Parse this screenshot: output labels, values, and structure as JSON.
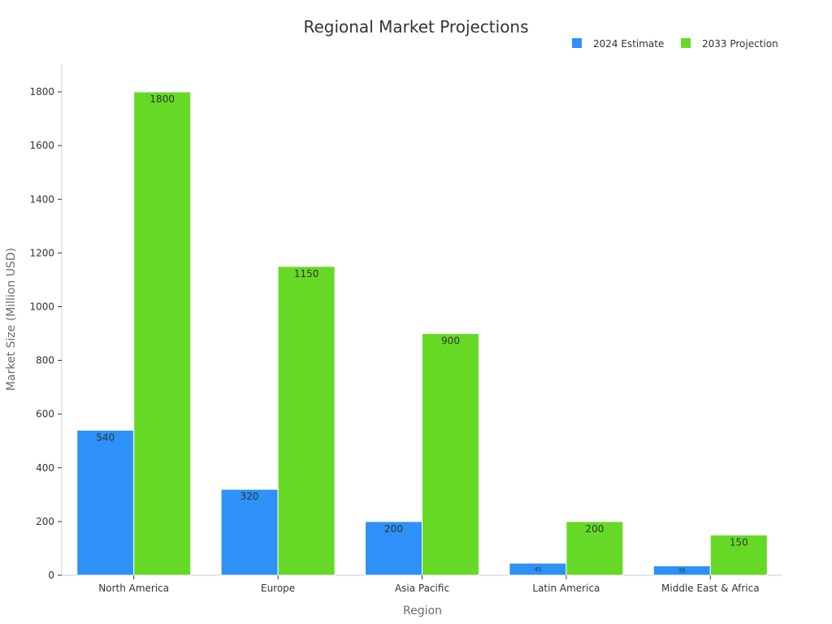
{
  "chart_data": {
    "type": "bar",
    "title": "Regional Market Projections",
    "xlabel": "Region",
    "ylabel": "Market Size (Million USD)",
    "categories": [
      "North America",
      "Europe",
      "Asia Pacific",
      "Latin America",
      "Middle East & Africa"
    ],
    "series": [
      {
        "name": "2024 Estimate",
        "color": "#2e91f7",
        "values": [
          540,
          320,
          200,
          45,
          35
        ],
        "labels": [
          "540",
          "320",
          "200",
          "45",
          "35"
        ]
      },
      {
        "name": "2033 Projection",
        "color": "#66d926",
        "values": [
          1800,
          1150,
          900,
          200,
          150
        ],
        "labels": [
          "1800",
          "1150",
          "900",
          "200",
          "150"
        ]
      }
    ],
    "ylim": [
      0,
      1900
    ],
    "yticks": [
      0,
      200,
      400,
      600,
      800,
      1000,
      1200,
      1400,
      1600,
      1800
    ],
    "grid": false,
    "legend_position": "top-right"
  }
}
